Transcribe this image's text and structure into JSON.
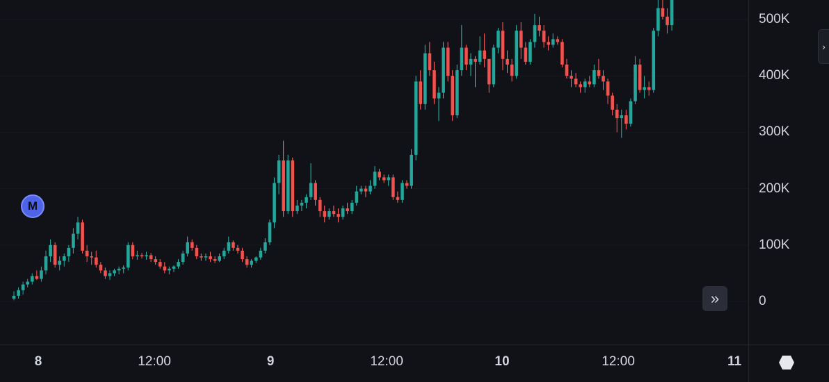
{
  "chart_data": {
    "type": "candlestick",
    "y_axis": {
      "ticks": [
        0,
        100000,
        200000,
        300000,
        400000,
        500000
      ],
      "tick_labels": [
        "0",
        "100K",
        "200K",
        "300K",
        "400K",
        "500K"
      ],
      "range": [
        -30000,
        545000
      ]
    },
    "x_axis": {
      "tick_labels": [
        "8",
        "12:00",
        "9",
        "12:00",
        "10",
        "12:00",
        "11"
      ],
      "major_ticks": [
        "8",
        "9",
        "10",
        "11"
      ]
    },
    "colors": {
      "up": "#26a69a",
      "down": "#ef5350"
    },
    "candles": [
      [
        5,
        18,
        2,
        10
      ],
      [
        10,
        25,
        5,
        20
      ],
      [
        20,
        35,
        12,
        30
      ],
      [
        30,
        40,
        25,
        35
      ],
      [
        35,
        50,
        30,
        45
      ],
      [
        45,
        55,
        38,
        40
      ],
      [
        40,
        62,
        35,
        55
      ],
      [
        55,
        90,
        48,
        80
      ],
      [
        80,
        110,
        70,
        100
      ],
      [
        100,
        105,
        60,
        65
      ],
      [
        65,
        80,
        55,
        72
      ],
      [
        72,
        85,
        62,
        80
      ],
      [
        80,
        100,
        70,
        95
      ],
      [
        95,
        130,
        85,
        120
      ],
      [
        120,
        150,
        110,
        140
      ],
      [
        140,
        145,
        85,
        90
      ],
      [
        90,
        100,
        70,
        80
      ],
      [
        80,
        88,
        65,
        78
      ],
      [
        78,
        90,
        60,
        65
      ],
      [
        65,
        70,
        50,
        55
      ],
      [
        55,
        60,
        40,
        45
      ],
      [
        45,
        55,
        38,
        50
      ],
      [
        50,
        58,
        45,
        55
      ],
      [
        55,
        62,
        48,
        58
      ],
      [
        58,
        64,
        50,
        60
      ],
      [
        60,
        105,
        55,
        100
      ],
      [
        100,
        105,
        75,
        80
      ],
      [
        80,
        90,
        74,
        82
      ],
      [
        82,
        86,
        76,
        80
      ],
      [
        80,
        88,
        74,
        82
      ],
      [
        82,
        86,
        70,
        75
      ],
      [
        75,
        80,
        65,
        70
      ],
      [
        70,
        75,
        58,
        62
      ],
      [
        62,
        70,
        50,
        55
      ],
      [
        55,
        62,
        48,
        58
      ],
      [
        58,
        64,
        52,
        62
      ],
      [
        62,
        75,
        58,
        70
      ],
      [
        70,
        90,
        65,
        85
      ],
      [
        85,
        115,
        80,
        105
      ],
      [
        105,
        110,
        90,
        95
      ],
      [
        95,
        100,
        75,
        80
      ],
      [
        80,
        85,
        72,
        78
      ],
      [
        78,
        85,
        72,
        80
      ],
      [
        80,
        88,
        70,
        75
      ],
      [
        75,
        80,
        68,
        72
      ],
      [
        72,
        85,
        70,
        80
      ],
      [
        80,
        95,
        75,
        90
      ],
      [
        90,
        115,
        85,
        105
      ],
      [
        105,
        108,
        90,
        95
      ],
      [
        95,
        100,
        85,
        90
      ],
      [
        90,
        95,
        70,
        75
      ],
      [
        75,
        80,
        60,
        65
      ],
      [
        65,
        75,
        60,
        72
      ],
      [
        72,
        80,
        68,
        78
      ],
      [
        78,
        95,
        74,
        90
      ],
      [
        90,
        112,
        85,
        105
      ],
      [
        105,
        145,
        100,
        140
      ],
      [
        140,
        220,
        130,
        210
      ],
      [
        210,
        260,
        190,
        250
      ],
      [
        250,
        285,
        150,
        160
      ],
      [
        160,
        260,
        155,
        250
      ],
      [
        250,
        255,
        150,
        160
      ],
      [
        160,
        180,
        155,
        170
      ],
      [
        170,
        180,
        160,
        175
      ],
      [
        175,
        190,
        165,
        185
      ],
      [
        185,
        245,
        180,
        210
      ],
      [
        210,
        215,
        170,
        180
      ],
      [
        180,
        185,
        150,
        160
      ],
      [
        160,
        170,
        140,
        150
      ],
      [
        150,
        165,
        145,
        160
      ],
      [
        160,
        170,
        150,
        155
      ],
      [
        155,
        165,
        140,
        150
      ],
      [
        150,
        170,
        145,
        165
      ],
      [
        165,
        175,
        155,
        160
      ],
      [
        160,
        180,
        155,
        175
      ],
      [
        175,
        205,
        170,
        195
      ],
      [
        195,
        205,
        190,
        200
      ],
      [
        200,
        205,
        185,
        195
      ],
      [
        195,
        215,
        190,
        205
      ],
      [
        205,
        240,
        200,
        230
      ],
      [
        230,
        235,
        215,
        220
      ],
      [
        220,
        225,
        210,
        215
      ],
      [
        215,
        225,
        205,
        220
      ],
      [
        220,
        225,
        180,
        185
      ],
      [
        185,
        195,
        175,
        180
      ],
      [
        180,
        215,
        175,
        210
      ],
      [
        210,
        215,
        200,
        205
      ],
      [
        205,
        270,
        200,
        260
      ],
      [
        260,
        400,
        250,
        390
      ],
      [
        390,
        410,
        340,
        350
      ],
      [
        350,
        455,
        340,
        440
      ],
      [
        440,
        460,
        400,
        410
      ],
      [
        410,
        425,
        350,
        360
      ],
      [
        360,
        380,
        320,
        370
      ],
      [
        370,
        460,
        360,
        450
      ],
      [
        450,
        460,
        390,
        400
      ],
      [
        400,
        410,
        320,
        330
      ],
      [
        330,
        420,
        325,
        410
      ],
      [
        410,
        490,
        400,
        450
      ],
      [
        450,
        455,
        410,
        420
      ],
      [
        420,
        440,
        400,
        430
      ],
      [
        430,
        435,
        380,
        425
      ],
      [
        425,
        470,
        420,
        445
      ],
      [
        445,
        475,
        415,
        430
      ],
      [
        430,
        430,
        370,
        385
      ],
      [
        385,
        455,
        380,
        450
      ],
      [
        450,
        485,
        440,
        480
      ],
      [
        480,
        495,
        410,
        430
      ],
      [
        430,
        445,
        405,
        420
      ],
      [
        420,
        430,
        390,
        400
      ],
      [
        400,
        490,
        395,
        480
      ],
      [
        480,
        495,
        430,
        450
      ],
      [
        450,
        460,
        420,
        425
      ],
      [
        425,
        465,
        420,
        460
      ],
      [
        460,
        510,
        450,
        490
      ],
      [
        490,
        505,
        470,
        480
      ],
      [
        480,
        490,
        450,
        460
      ],
      [
        460,
        470,
        445,
        455
      ],
      [
        455,
        475,
        450,
        465
      ],
      [
        465,
        470,
        455,
        460
      ],
      [
        460,
        465,
        415,
        420
      ],
      [
        420,
        430,
        395,
        400
      ],
      [
        400,
        410,
        380,
        395
      ],
      [
        395,
        405,
        380,
        385
      ],
      [
        385,
        390,
        370,
        380
      ],
      [
        380,
        395,
        370,
        390
      ],
      [
        390,
        400,
        380,
        385
      ],
      [
        385,
        420,
        380,
        410
      ],
      [
        410,
        430,
        395,
        400
      ],
      [
        400,
        410,
        375,
        390
      ],
      [
        390,
        395,
        350,
        365
      ],
      [
        365,
        370,
        330,
        340
      ],
      [
        340,
        350,
        300,
        325
      ],
      [
        325,
        340,
        290,
        330
      ],
      [
        330,
        340,
        305,
        315
      ],
      [
        315,
        360,
        310,
        355
      ],
      [
        355,
        435,
        350,
        420
      ],
      [
        420,
        430,
        370,
        375
      ],
      [
        375,
        400,
        360,
        380
      ],
      [
        380,
        390,
        365,
        375
      ],
      [
        375,
        485,
        370,
        480
      ],
      [
        480,
        545,
        470,
        520
      ],
      [
        520,
        545,
        500,
        505
      ],
      [
        505,
        520,
        475,
        490
      ],
      [
        490,
        545,
        480,
        540
      ]
    ]
  },
  "marker": {
    "label": "M"
  },
  "scroll_button": {
    "icon": "double-chevron-right-icon",
    "glyph": "»"
  },
  "expand_button": {
    "icon": "chevron-right-icon",
    "glyph": "›"
  },
  "settings": {
    "icon": "hexagon-icon"
  }
}
